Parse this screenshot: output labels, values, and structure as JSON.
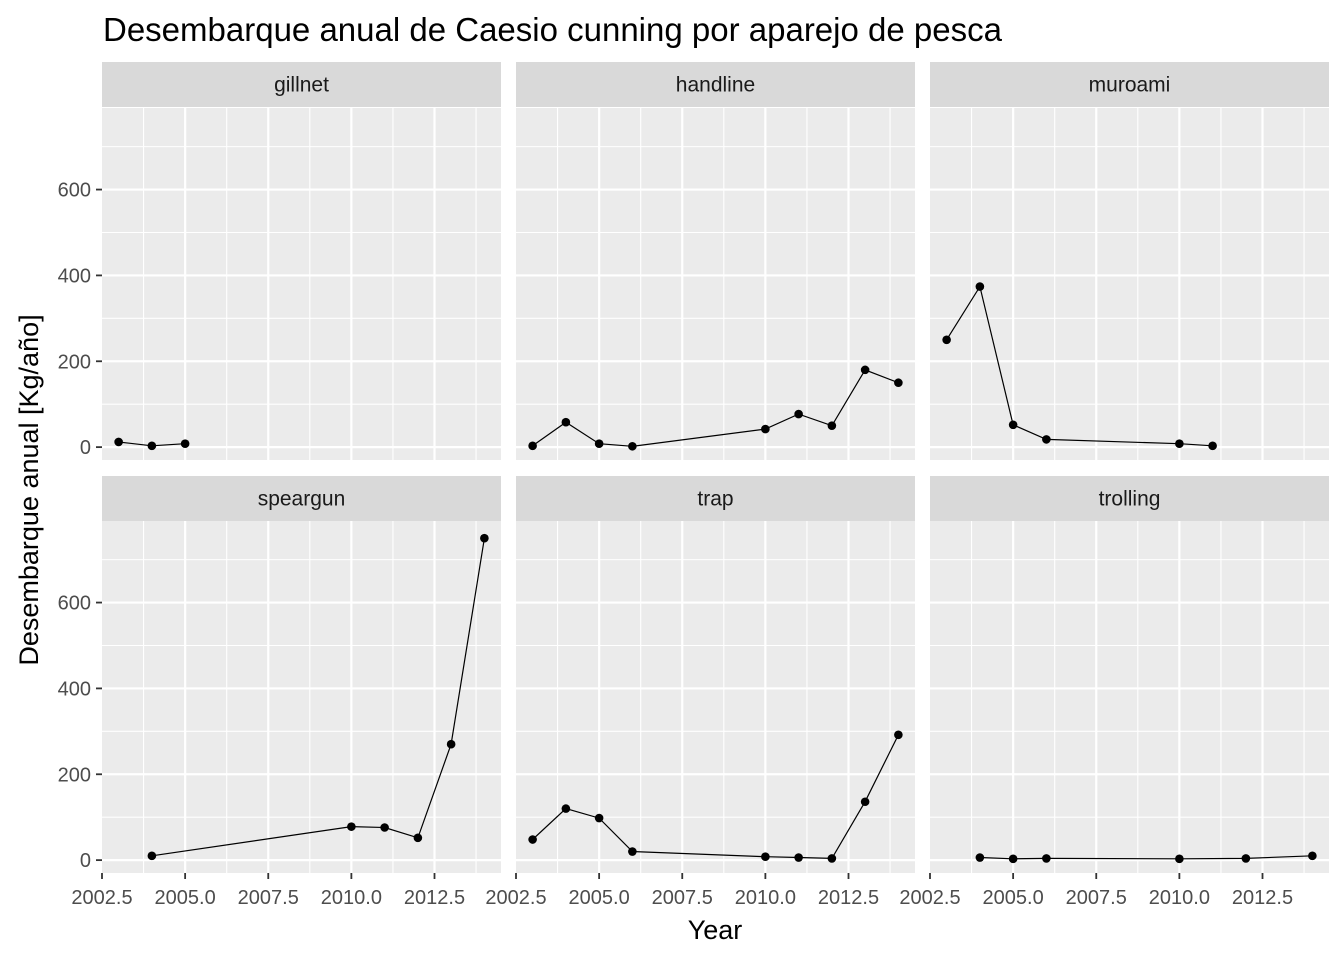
{
  "chart_data": {
    "type": "line",
    "title": "Desembarque anual de Caesio cunning por aparejo de pesca",
    "xlabel": "Year",
    "ylabel": "Desembarque anual [Kg/año]",
    "xlim": [
      2002.5,
      2014.5
    ],
    "ylim": [
      -30,
      790
    ],
    "x_ticks": [
      2002.5,
      2005.0,
      2007.5,
      2010.0,
      2012.5
    ],
    "x_tick_labels": [
      "2002.5",
      "2005.0",
      "2007.5",
      "2010.0",
      "2012.5"
    ],
    "y_ticks": [
      0,
      200,
      400,
      600
    ],
    "y_tick_labels": [
      "0",
      "200",
      "400",
      "600"
    ],
    "grid": true,
    "facet_layout": "2 rows x 3 columns",
    "colors": {
      "panel_background": "#ebebeb",
      "strip_background": "#d9d9d9",
      "grid": "#ffffff",
      "series": "#000000"
    },
    "series": [
      {
        "name": "gillnet",
        "x": [
          2003,
          2004,
          2005
        ],
        "y": [
          12,
          3,
          8
        ]
      },
      {
        "name": "handline",
        "x": [
          2003,
          2004,
          2005,
          2006,
          2010,
          2011,
          2012,
          2013,
          2014
        ],
        "y": [
          3,
          58,
          8,
          2,
          42,
          77,
          50,
          180,
          150
        ]
      },
      {
        "name": "muroami",
        "x": [
          2003,
          2004,
          2005,
          2006,
          2010,
          2011
        ],
        "y": [
          250,
          374,
          52,
          18,
          8,
          3
        ]
      },
      {
        "name": "speargun",
        "x": [
          2004,
          2010,
          2011,
          2012,
          2013,
          2014
        ],
        "y": [
          10,
          78,
          76,
          52,
          270,
          750
        ]
      },
      {
        "name": "trap",
        "x": [
          2003,
          2004,
          2005,
          2006,
          2010,
          2011,
          2012,
          2013,
          2014
        ],
        "y": [
          48,
          120,
          98,
          20,
          8,
          6,
          4,
          136,
          292
        ]
      },
      {
        "name": "trolling",
        "x": [
          2004,
          2005,
          2006,
          2010,
          2012,
          2014
        ],
        "y": [
          6,
          3,
          4,
          3,
          4,
          10
        ]
      }
    ]
  }
}
